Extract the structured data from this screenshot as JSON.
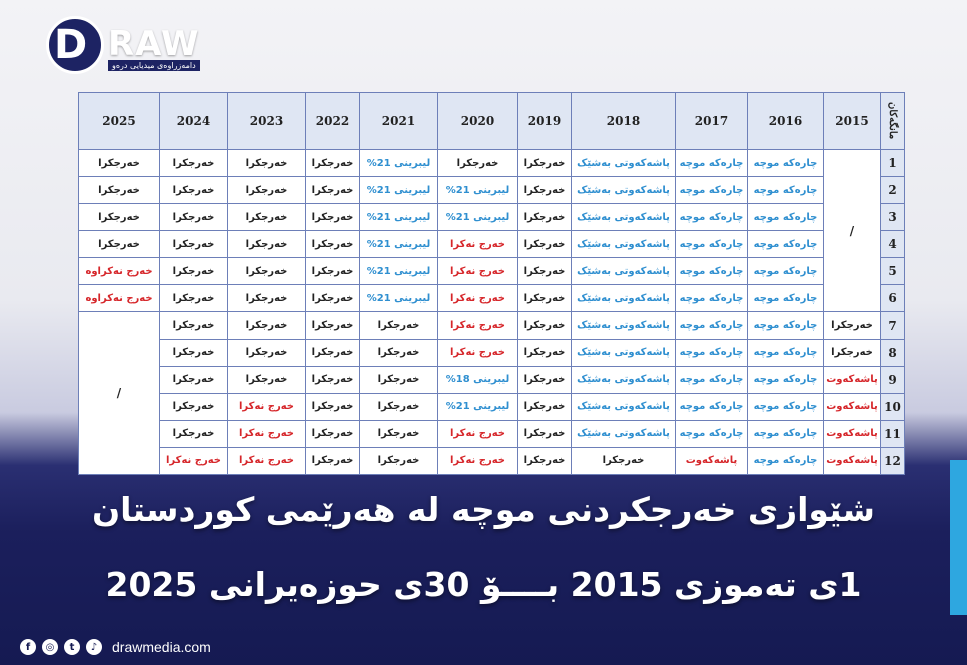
{
  "brand": {
    "logo_letter": "D",
    "logo_word": "RAW",
    "logo_tagline": "دامەزراوەی میدیایی درەو"
  },
  "table": {
    "header_label": "مانگەکان",
    "years": [
      "2025",
      "2024",
      "2023",
      "2022",
      "2021",
      "2020",
      "2019",
      "2018",
      "2017",
      "2016",
      "2015"
    ],
    "rows": [
      {
        "num": "1",
        "cells": [
          [
            "خەرجکرا",
            "black"
          ],
          [
            "خەرجکرا",
            "black"
          ],
          [
            "خەرجکرا",
            "black"
          ],
          [
            "خەرجکرا",
            "black"
          ],
          [
            "لیبرینی 21%",
            "blue"
          ],
          [
            "خەرجکرا",
            "black"
          ],
          [
            "خەرجکرا",
            "black"
          ],
          [
            "پاشەکەوتی بەشێک",
            "blue"
          ],
          [
            "چارەکە موچە",
            "blue"
          ],
          [
            "چارەکە موچە",
            "blue"
          ]
        ]
      },
      {
        "num": "2",
        "cells": [
          [
            "خەرجکرا",
            "black"
          ],
          [
            "خەرجکرا",
            "black"
          ],
          [
            "خەرجکرا",
            "black"
          ],
          [
            "خەرجکرا",
            "black"
          ],
          [
            "لیبرینی 21%",
            "blue"
          ],
          [
            "لیبرینی 21%",
            "blue"
          ],
          [
            "خەرجکرا",
            "black"
          ],
          [
            "پاشەکەوتی بەشێک",
            "blue"
          ],
          [
            "چارەکە موچە",
            "blue"
          ],
          [
            "چارەکە موچە",
            "blue"
          ]
        ]
      },
      {
        "num": "3",
        "cells": [
          [
            "خەرجکرا",
            "black"
          ],
          [
            "خەرجکرا",
            "black"
          ],
          [
            "خەرجکرا",
            "black"
          ],
          [
            "خەرجکرا",
            "black"
          ],
          [
            "لیبرینی 21%",
            "blue"
          ],
          [
            "لیبرینی 21%",
            "blue"
          ],
          [
            "خەرجکرا",
            "black"
          ],
          [
            "پاشەکەوتی بەشێک",
            "blue"
          ],
          [
            "چارەکە موچە",
            "blue"
          ],
          [
            "چارەکە موچە",
            "blue"
          ]
        ]
      },
      {
        "num": "4",
        "cells": [
          [
            "خەرجکرا",
            "black"
          ],
          [
            "خەرجکرا",
            "black"
          ],
          [
            "خەرجکرا",
            "black"
          ],
          [
            "خەرجکرا",
            "black"
          ],
          [
            "لیبرینی 21%",
            "blue"
          ],
          [
            "خەرج نەکرا",
            "red"
          ],
          [
            "خەرجکرا",
            "black"
          ],
          [
            "پاشەکەوتی بەشێک",
            "blue"
          ],
          [
            "چارەکە موچە",
            "blue"
          ],
          [
            "چارەکە موچە",
            "blue"
          ]
        ]
      },
      {
        "num": "5",
        "cells": [
          [
            "خەرج نەکراوە",
            "red"
          ],
          [
            "خەرجکرا",
            "black"
          ],
          [
            "خەرجکرا",
            "black"
          ],
          [
            "خەرجکرا",
            "black"
          ],
          [
            "لیبرینی 21%",
            "blue"
          ],
          [
            "خەرج نەکرا",
            "red"
          ],
          [
            "خەرجکرا",
            "black"
          ],
          [
            "پاشەکەوتی بەشێک",
            "blue"
          ],
          [
            "چارەکە موچە",
            "blue"
          ],
          [
            "چارەکە موچە",
            "blue"
          ]
        ]
      },
      {
        "num": "6",
        "cells": [
          [
            "خەرج نەکراوە",
            "red"
          ],
          [
            "خەرجکرا",
            "black"
          ],
          [
            "خەرجکرا",
            "black"
          ],
          [
            "خەرجکرا",
            "black"
          ],
          [
            "لیبرینی 21%",
            "blue"
          ],
          [
            "خەرج نەکرا",
            "red"
          ],
          [
            "خەرجکرا",
            "black"
          ],
          [
            "پاشەکەوتی بەشێک",
            "blue"
          ],
          [
            "چارەکە موچە",
            "blue"
          ],
          [
            "چارەکە موچە",
            "blue"
          ]
        ]
      },
      {
        "num": "7",
        "cells": [
          [
            "خەرجکرا",
            "black"
          ],
          [
            "خەرجکرا",
            "black"
          ],
          [
            "خەرجکرا",
            "black"
          ],
          [
            "خەرجکرا",
            "black"
          ],
          [
            "خەرج نەکرا",
            "red"
          ],
          [
            "خەرجکرا",
            "black"
          ],
          [
            "پاشەکەوتی بەشێک",
            "blue"
          ],
          [
            "چارەکە موچە",
            "blue"
          ],
          [
            "چارەکە موچە",
            "blue"
          ],
          [
            "خەرجکرا",
            "black"
          ]
        ]
      },
      {
        "num": "8",
        "cells": [
          [
            "خەرجکرا",
            "black"
          ],
          [
            "خەرجکرا",
            "black"
          ],
          [
            "خەرجکرا",
            "black"
          ],
          [
            "خەرجکرا",
            "black"
          ],
          [
            "خەرج نەکرا",
            "red"
          ],
          [
            "خەرجکرا",
            "black"
          ],
          [
            "پاشەکەوتی بەشێک",
            "blue"
          ],
          [
            "چارەکە موچە",
            "blue"
          ],
          [
            "چارەکە موچە",
            "blue"
          ],
          [
            "خەرجکرا",
            "black"
          ]
        ]
      },
      {
        "num": "9",
        "cells": [
          [
            "خەرجکرا",
            "black"
          ],
          [
            "خەرجکرا",
            "black"
          ],
          [
            "خەرجکرا",
            "black"
          ],
          [
            "خەرجکرا",
            "black"
          ],
          [
            "لیبرینی 18%",
            "blue"
          ],
          [
            "خەرجکرا",
            "black"
          ],
          [
            "پاشەکەوتی بەشێک",
            "blue"
          ],
          [
            "چارەکە موچە",
            "blue"
          ],
          [
            "چارەکە موچە",
            "blue"
          ],
          [
            "پاشەکەوت",
            "red"
          ]
        ]
      },
      {
        "num": "10",
        "cells": [
          [
            "خەرجکرا",
            "black"
          ],
          [
            "خەرج نەکرا",
            "red"
          ],
          [
            "خەرجکرا",
            "black"
          ],
          [
            "خەرجکرا",
            "black"
          ],
          [
            "لیبرینی 21%",
            "blue"
          ],
          [
            "خەرجکرا",
            "black"
          ],
          [
            "پاشەکەوتی بەشێک",
            "blue"
          ],
          [
            "چارەکە موچە",
            "blue"
          ],
          [
            "چارەکە موچە",
            "blue"
          ],
          [
            "پاشەکەوت",
            "red"
          ]
        ]
      },
      {
        "num": "11",
        "cells": [
          [
            "خەرجکرا",
            "black"
          ],
          [
            "خەرج نەکرا",
            "red"
          ],
          [
            "خەرجکرا",
            "black"
          ],
          [
            "خەرجکرا",
            "black"
          ],
          [
            "خەرج نەکرا",
            "red"
          ],
          [
            "خەرجکرا",
            "black"
          ],
          [
            "پاشەکەوتی بەشێک",
            "blue"
          ],
          [
            "چارەکە موچە",
            "blue"
          ],
          [
            "چارەکە موچە",
            "blue"
          ],
          [
            "پاشەکەوت",
            "red"
          ]
        ]
      },
      {
        "num": "12",
        "cells": [
          [
            "خەرج نەکرا",
            "red"
          ],
          [
            "خەرج نەکرا",
            "red"
          ],
          [
            "خەرجکرا",
            "black"
          ],
          [
            "خەرجکرا",
            "black"
          ],
          [
            "خەرج نەکرا",
            "red"
          ],
          [
            "خەرجکرا",
            "black"
          ],
          [
            "خەرجکرا",
            "black"
          ],
          [
            "پاشەکەوت",
            "red"
          ],
          [
            "چارەکە موچە",
            "blue"
          ],
          [
            "پاشەکەوت",
            "red"
          ]
        ]
      }
    ],
    "slash": "/"
  },
  "headline": {
    "line1": "شێوازی خەرجکردنی موچە لە هەرێمی کوردستان",
    "line2": "1ی تەموزی 2015 بــــۆ 30ی حوزەیرانی 2025"
  },
  "footer": {
    "icons": [
      "facebook-icon",
      "instagram-icon",
      "twitter-icon",
      "tiktok-icon"
    ],
    "icon_glyphs": [
      "f",
      "◎",
      "t",
      "♪"
    ],
    "site": "drawmedia.com"
  }
}
